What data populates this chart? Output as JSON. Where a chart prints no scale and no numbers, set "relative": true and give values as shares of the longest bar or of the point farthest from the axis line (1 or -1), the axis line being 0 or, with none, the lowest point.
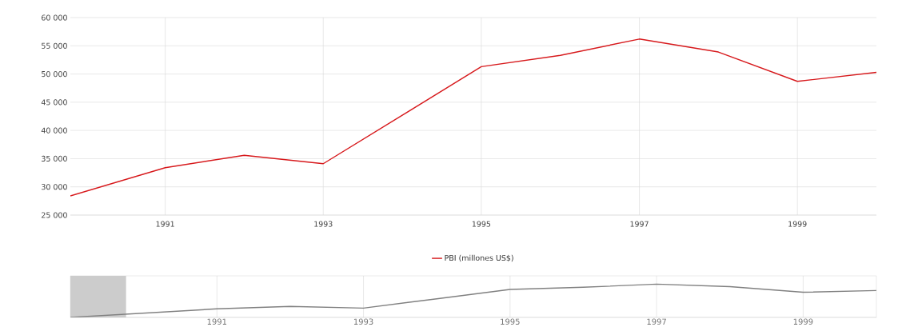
{
  "chart_data": [
    {
      "type": "line",
      "x": [
        1989.8,
        1991,
        1992,
        1993,
        1994,
        1995,
        1996,
        1997,
        1998,
        1999,
        2000
      ],
      "series": [
        {
          "name": "PBI (millones US$)",
          "color": "#d7191c",
          "values": [
            28400,
            33400,
            35600,
            34100,
            42700,
            51300,
            53300,
            56200,
            53900,
            48700,
            50300
          ]
        }
      ],
      "xlim": [
        1989.8,
        2000
      ],
      "xticks": [
        1991,
        1993,
        1995,
        1997,
        1999
      ],
      "ylim": [
        25000,
        60000
      ],
      "yticks": [
        {
          "value": 25000,
          "label": "25 000"
        },
        {
          "value": 30000,
          "label": "30 000"
        },
        {
          "value": 35000,
          "label": "35 000"
        },
        {
          "value": 40000,
          "label": "40 000"
        },
        {
          "value": 45000,
          "label": "45 000"
        },
        {
          "value": 50000,
          "label": "50 000"
        },
        {
          "value": 55000,
          "label": "55 000"
        },
        {
          "value": 60000,
          "label": "60 000"
        }
      ],
      "grid": true,
      "legend": "bottom"
    },
    {
      "type": "line",
      "relative": true,
      "x": [
        1989,
        1991,
        1992,
        1993,
        1994,
        1995,
        1996,
        1997,
        1998,
        1999,
        2000
      ],
      "series": [
        {
          "color": "#808080",
          "values": [
            0,
            0.257,
            0.329,
            0.28,
            0.56,
            0.84,
            0.906,
            1,
            0.925,
            0.756,
            0.808
          ]
        }
      ],
      "xlim": [
        1989,
        2000
      ],
      "xticks": [
        1991,
        1993,
        1995,
        1997,
        1999
      ],
      "grid": "x",
      "bands": [
        {
          "axis": "x",
          "from": 1989,
          "to": 1989.76,
          "color": "#cccccc"
        }
      ]
    }
  ]
}
